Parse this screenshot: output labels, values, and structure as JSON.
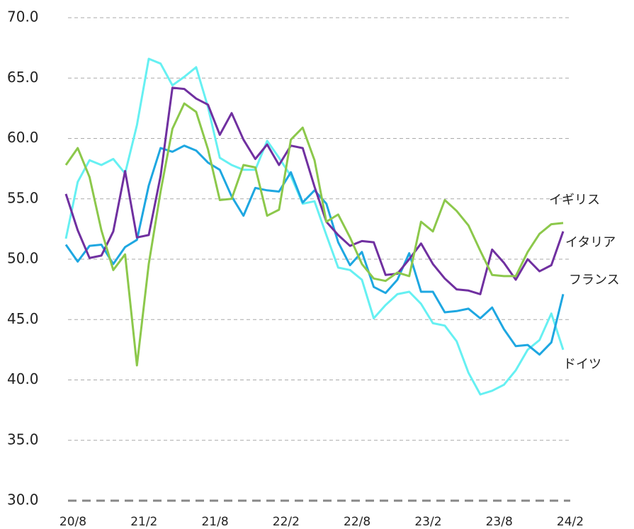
{
  "chart_data": {
    "type": "line",
    "categories": [
      "20/8",
      null,
      null,
      null,
      null,
      null,
      "21/2",
      null,
      null,
      null,
      null,
      null,
      "21/8",
      null,
      null,
      null,
      null,
      null,
      "22/2",
      null,
      null,
      null,
      null,
      null,
      "22/8",
      null,
      null,
      null,
      null,
      null,
      "23/2",
      null,
      null,
      null,
      null,
      null,
      "23/8",
      null,
      null,
      null,
      null,
      null,
      "24/2"
    ],
    "series": [
      {
        "name": "ドイツ",
        "color": "#66f0f2",
        "values": [
          51.7,
          56.4,
          58.2,
          57.8,
          58.3,
          57.1,
          61.1,
          66.6,
          66.2,
          64.4,
          65.1,
          65.9,
          62.6,
          58.4,
          57.8,
          57.4,
          57.4,
          59.8,
          58.4,
          56.9,
          54.6,
          54.8,
          52.0,
          49.3,
          49.1,
          48.3,
          45.1,
          46.2,
          47.1,
          47.3,
          46.3,
          44.7,
          44.5,
          43.2,
          40.6,
          38.8,
          39.1,
          39.6,
          40.8,
          42.5,
          43.3,
          45.5,
          42.5
        ]
      },
      {
        "name": "フランス",
        "color": "#1ea7e1",
        "values": [
          51.2,
          49.8,
          51.1,
          51.2,
          49.6,
          51.0,
          51.6,
          56.1,
          59.2,
          58.9,
          59.4,
          59.0,
          58.0,
          57.4,
          55.2,
          53.6,
          55.9,
          55.7,
          55.6,
          57.2,
          54.7,
          55.7,
          54.6,
          51.4,
          49.5,
          50.6,
          47.7,
          47.2,
          48.3,
          50.5,
          47.3,
          47.3,
          45.6,
          45.7,
          45.9,
          45.1,
          46.0,
          44.2,
          42.8,
          42.9,
          42.1,
          43.1,
          47.1
        ]
      },
      {
        "name": "イタリア",
        "color": "#7030a0",
        "values": [
          55.4,
          52.4,
          50.1,
          50.3,
          52.3,
          57.3,
          51.8,
          52.0,
          56.9,
          64.2,
          64.1,
          63.3,
          62.8,
          60.3,
          62.1,
          59.9,
          58.3,
          59.5,
          57.8,
          59.4,
          59.2,
          56.0,
          53.1,
          52.0,
          51.1,
          51.5,
          51.4,
          48.7,
          48.8,
          50.0,
          51.3,
          49.6,
          48.4,
          47.5,
          47.4,
          47.1,
          50.8,
          49.7,
          48.3,
          50.0,
          49.0,
          49.5,
          52.3
        ]
      },
      {
        "name": "イギリス",
        "color": "#8cc84b",
        "values": [
          57.8,
          59.2,
          56.8,
          52.4,
          49.1,
          50.4,
          41.2,
          49.6,
          55.6,
          60.8,
          62.9,
          62.2,
          59.1,
          54.9,
          55.0,
          57.8,
          57.6,
          53.6,
          54.1,
          59.9,
          60.9,
          58.2,
          53.1,
          53.7,
          51.8,
          49.6,
          48.4,
          48.2,
          48.9,
          48.6,
          53.1,
          52.3,
          54.9,
          54.0,
          52.8,
          50.7,
          48.7,
          48.6,
          48.6,
          50.6,
          52.1,
          52.9,
          53.0
        ]
      }
    ],
    "ylim": [
      30,
      70
    ],
    "yticks": [
      {
        "value": 30,
        "label": "30.0"
      },
      {
        "value": 35,
        "label": "35.0"
      },
      {
        "value": 40,
        "label": "40.0"
      },
      {
        "value": 45,
        "label": "45.0"
      },
      {
        "value": 50,
        "label": "50.0"
      },
      {
        "value": 55,
        "label": "55.0"
      },
      {
        "value": 60,
        "label": "60.0"
      },
      {
        "value": 65,
        "label": "65.0"
      },
      {
        "value": 70,
        "label": "70.0"
      }
    ],
    "grid": true
  }
}
